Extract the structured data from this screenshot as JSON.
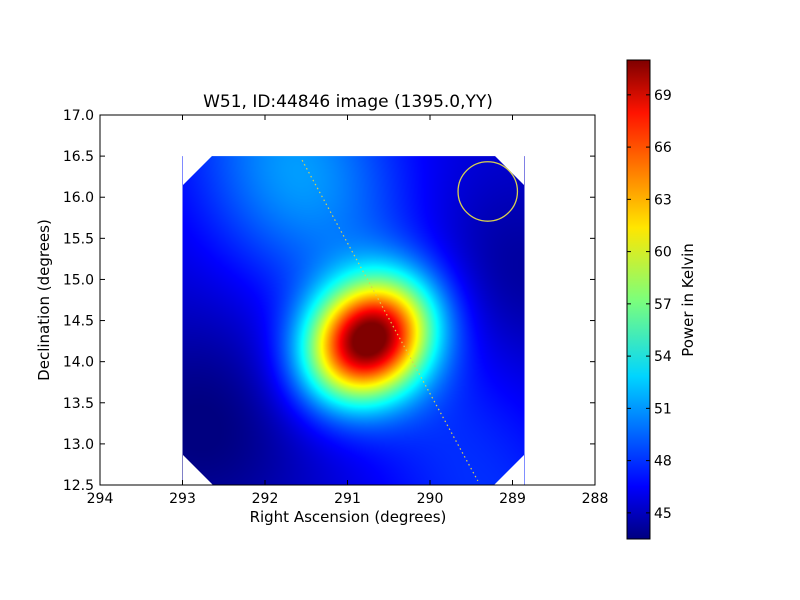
{
  "chart_data": {
    "type": "heatmap",
    "title": "W51, ID:44846 image (1395.0,YY)",
    "xlabel": "Right Ascension (degrees)",
    "ylabel": "Declination (degrees)",
    "xlim": [
      294,
      288
    ],
    "ylim": [
      12.5,
      17.0
    ],
    "xticks": [
      294,
      293,
      292,
      291,
      290,
      289,
      288
    ],
    "xtick_labels": [
      "294",
      "293",
      "292",
      "291",
      "290",
      "289",
      "288"
    ],
    "yticks": [
      12.5,
      13.0,
      13.5,
      14.0,
      14.5,
      15.0,
      15.5,
      16.0,
      16.5,
      17.0
    ],
    "ytick_labels": [
      "12.5",
      "13.0",
      "13.5",
      "14.0",
      "14.5",
      "15.0",
      "15.5",
      "16.0",
      "16.5",
      "17.0"
    ],
    "grid": false,
    "image_extent": {
      "ra": [
        293.0,
        288.85
      ],
      "dec": [
        12.5,
        16.5
      ]
    },
    "peak": {
      "ra": 290.75,
      "dec": 14.27,
      "value": 71
    },
    "background_level": 46,
    "beam_circle": {
      "ra": 289.3,
      "dec": 16.07,
      "radius_deg": 0.36,
      "color": "#d8d050"
    },
    "plane_line": {
      "start": {
        "ra": 291.55,
        "dec": 16.45
      },
      "end": {
        "ra": 289.42,
        "dec": 12.55
      }
    },
    "colorbar": {
      "label": "Power in Kelvin",
      "min": 43.5,
      "max": 71,
      "ticks": [
        45,
        48,
        51,
        54,
        57,
        60,
        63,
        66,
        69
      ],
      "tick_labels": [
        "45",
        "48",
        "51",
        "54",
        "57",
        "60",
        "63",
        "66",
        "69"
      ],
      "colormap": "jet"
    }
  }
}
